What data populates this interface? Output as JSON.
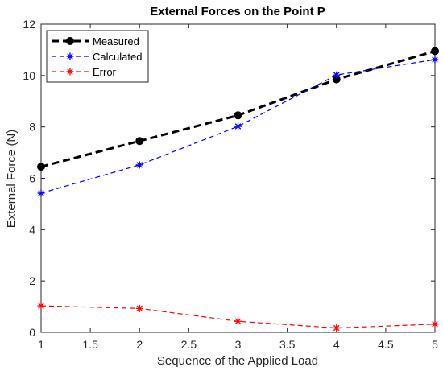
{
  "chart_data": {
    "type": "line",
    "title": "External Forces on the Point P",
    "xlabel": "Sequence of the Applied Load",
    "ylabel": "External Force (N)",
    "xlim": [
      1,
      5
    ],
    "ylim": [
      0,
      12
    ],
    "xticks": [
      1,
      1.5,
      2,
      2.5,
      3,
      3.5,
      4,
      4.5,
      5
    ],
    "xtick_labels": [
      "1",
      "1.5",
      "2",
      "2.5",
      "3",
      "3.5",
      "4",
      "4.5",
      "5"
    ],
    "yticks": [
      0,
      2,
      4,
      6,
      8,
      10,
      12
    ],
    "ytick_labels": [
      "0",
      "2",
      "4",
      "6",
      "8",
      "10",
      "12"
    ],
    "grid": false,
    "legend_position": "top-left",
    "x": [
      1,
      2,
      3,
      4,
      5
    ],
    "series": [
      {
        "name": "Measured",
        "values": [
          6.45,
          7.45,
          8.45,
          9.85,
          10.95
        ],
        "color": "#000000",
        "line": "dashed",
        "marker": "filled-circle"
      },
      {
        "name": "Calculated",
        "values": [
          5.42,
          6.52,
          8.02,
          10.02,
          10.62
        ],
        "color": "#0000ff",
        "line": "dashed",
        "marker": "asterisk"
      },
      {
        "name": "Error",
        "values": [
          1.03,
          0.93,
          0.43,
          0.17,
          0.32
        ],
        "color": "#ff0000",
        "line": "dashed",
        "marker": "asterisk"
      }
    ]
  }
}
